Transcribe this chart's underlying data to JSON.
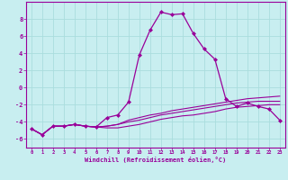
{
  "xlabel": "Windchill (Refroidissement éolien,°C)",
  "background_color": "#c8eef0",
  "grid_color": "#aadddd",
  "line_color": "#990099",
  "xlim": [
    -0.5,
    23.5
  ],
  "ylim": [
    -7,
    10
  ],
  "xticks": [
    0,
    1,
    2,
    3,
    4,
    5,
    6,
    7,
    8,
    9,
    10,
    11,
    12,
    13,
    14,
    15,
    16,
    17,
    18,
    19,
    20,
    21,
    22,
    23
  ],
  "yticks": [
    -6,
    -4,
    -2,
    0,
    2,
    4,
    6,
    8
  ],
  "series1_x": [
    0,
    1,
    2,
    3,
    4,
    5,
    6,
    7,
    8,
    9,
    10,
    11,
    12,
    13,
    14,
    15,
    16,
    17,
    18,
    19,
    20,
    21,
    22,
    23
  ],
  "series1_y": [
    -4.8,
    -5.5,
    -4.5,
    -4.5,
    -4.3,
    -4.5,
    -4.6,
    -4.7,
    -4.7,
    -4.5,
    -4.3,
    -4.0,
    -3.7,
    -3.5,
    -3.3,
    -3.2,
    -3.0,
    -2.8,
    -2.5,
    -2.3,
    -2.2,
    -2.1,
    -2.0,
    -2.0
  ],
  "series2_x": [
    0,
    1,
    2,
    3,
    4,
    5,
    6,
    7,
    8,
    9,
    10,
    11,
    12,
    13,
    14,
    15,
    16,
    17,
    18,
    19,
    20,
    21,
    22,
    23
  ],
  "series2_y": [
    -4.8,
    -5.5,
    -4.5,
    -4.5,
    -4.3,
    -4.5,
    -4.6,
    -4.5,
    -4.3,
    -4.0,
    -3.8,
    -3.5,
    -3.2,
    -3.0,
    -2.8,
    -2.6,
    -2.4,
    -2.2,
    -2.0,
    -1.8,
    -1.7,
    -1.6,
    -1.6,
    -1.6
  ],
  "series3_x": [
    0,
    1,
    2,
    3,
    4,
    5,
    6,
    7,
    8,
    9,
    10,
    11,
    12,
    13,
    14,
    15,
    16,
    17,
    18,
    19,
    20,
    21,
    22,
    23
  ],
  "series3_y": [
    -4.8,
    -5.5,
    -4.5,
    -4.5,
    -4.3,
    -4.5,
    -4.6,
    -3.5,
    -3.2,
    -1.7,
    3.8,
    6.7,
    8.8,
    8.5,
    8.6,
    6.3,
    4.5,
    3.3,
    -1.3,
    -2.2,
    -1.8,
    -2.2,
    -2.5,
    -3.8
  ],
  "series4_x": [
    0,
    1,
    2,
    3,
    4,
    5,
    6,
    7,
    8,
    9,
    10,
    11,
    12,
    13,
    14,
    15,
    16,
    17,
    18,
    19,
    20,
    21,
    22,
    23
  ],
  "series4_y": [
    -4.8,
    -5.5,
    -4.5,
    -4.5,
    -4.3,
    -4.5,
    -4.6,
    -4.5,
    -4.3,
    -3.8,
    -3.5,
    -3.2,
    -3.0,
    -2.7,
    -2.5,
    -2.3,
    -2.1,
    -1.9,
    -1.7,
    -1.5,
    -1.3,
    -1.2,
    -1.1,
    -1.0
  ]
}
